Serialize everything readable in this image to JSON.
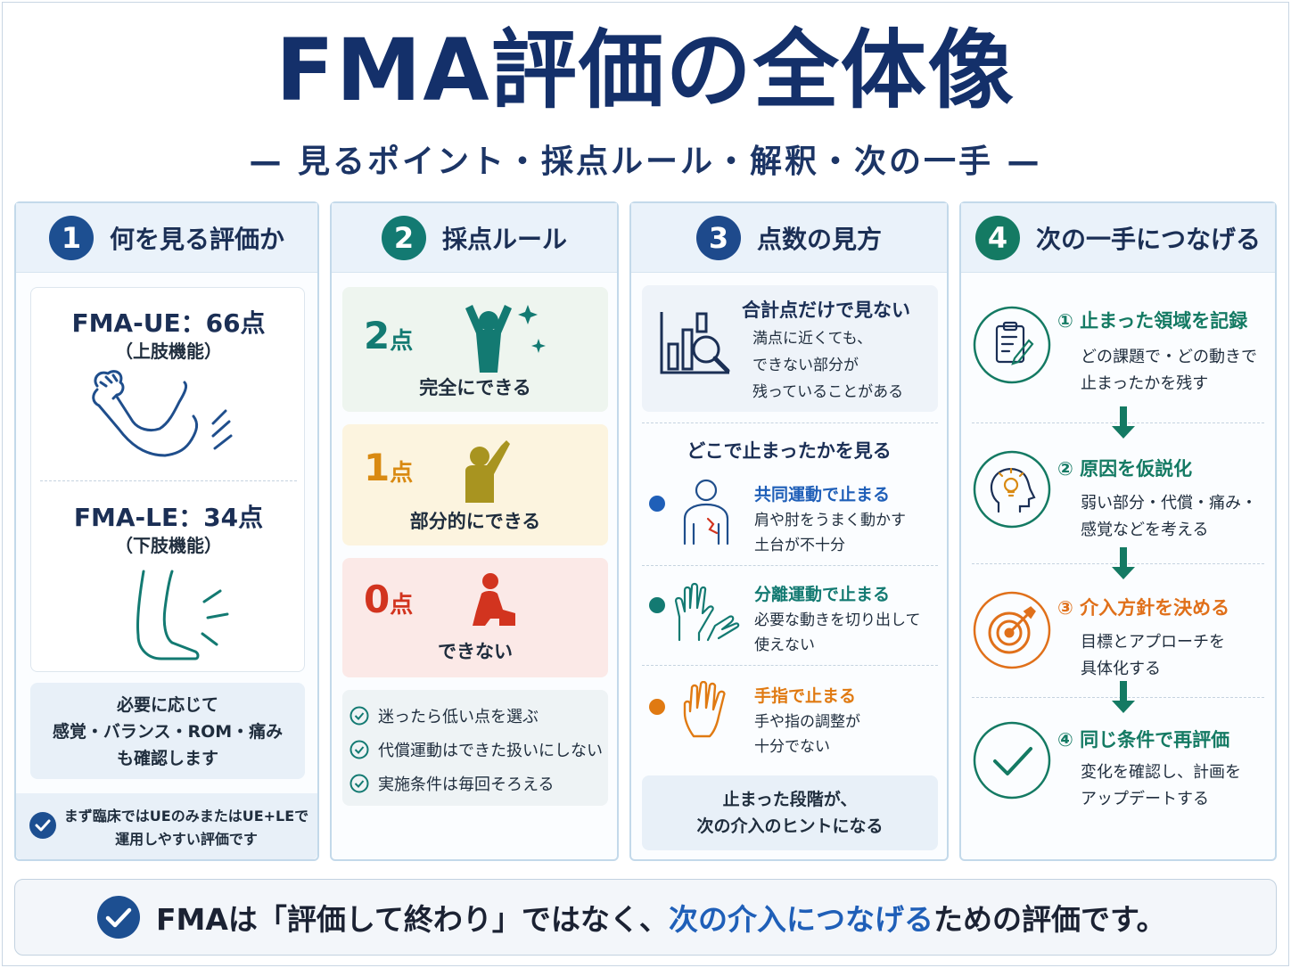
{
  "title": "FMA評価の全体像",
  "subtitle": "— 見るポイント・採点ルール・解釈・次の一手 —",
  "col1": {
    "num": "1",
    "heading": "何を見る評価か",
    "ue_title": "FMA-UE：66点",
    "ue_sub": "（上肢機能）",
    "le_title": "FMA-LE：34点",
    "le_sub": "（下肢機能）",
    "note_lines": [
      "必要に応じて",
      "感覚・バランス・ROM・痛み",
      "も確認します"
    ],
    "foot_lines": [
      "まず臨床ではUEのみまたはUE+LEで",
      "運用しやすい評価です"
    ]
  },
  "col2": {
    "num": "2",
    "heading": "採点ルール",
    "score2": {
      "num": "2",
      "unit": "点",
      "label": "完全にできる",
      "color": "#137a72",
      "bg": "#eef5ef"
    },
    "score1": {
      "num": "1",
      "unit": "点",
      "label": "部分的にできる",
      "color": "#d98a12",
      "bg": "#fcf4df"
    },
    "score0": {
      "num": "0",
      "unit": "点",
      "label": "できない",
      "color": "#d2341f",
      "bg": "#fbe9e7"
    },
    "rules": [
      "迷ったら低い点を選ぶ",
      "代償運動はできた扱いにしない",
      "実施条件は毎回そろえる"
    ]
  },
  "col3": {
    "num": "3",
    "heading": "点数の見方",
    "total_title": "合計点だけで見ない",
    "total_lines": [
      "満点に近くても、",
      "できない部分が",
      "残っていることがある"
    ],
    "where_title": "どこで止まったかを見る",
    "items": [
      {
        "title": "共同運動で止まる",
        "lines": [
          "肩や肘をうまく動かす",
          "土台が不十分"
        ],
        "color": "#1f5fb8"
      },
      {
        "title": "分離運動で止まる",
        "lines": [
          "必要な動きを切り出して",
          "使えない"
        ],
        "color": "#137a72"
      },
      {
        "title": "手指で止まる",
        "lines": [
          "手や指の調整が",
          "十分でない"
        ],
        "color": "#e07a12"
      }
    ],
    "foot_lines": [
      "止まった段階が、",
      "次の介入のヒントになる"
    ]
  },
  "col4": {
    "num": "4",
    "heading": "次の一手につなげる",
    "steps": [
      {
        "title": "① 止まった領域を記録",
        "lines": [
          "どの課題で・どの動きで",
          "止まったかを残す"
        ],
        "color": "#147a63"
      },
      {
        "title": "② 原因を仮説化",
        "lines": [
          "弱い部分・代償・痛み・",
          "感覚などを考える"
        ],
        "color": "#147a63"
      },
      {
        "title": "③ 介入方針を決める",
        "lines": [
          "目標とアプローチを",
          "具体化する"
        ],
        "color": "#e0701a"
      },
      {
        "title": "④ 同じ条件で再評価",
        "lines": [
          "変化を確認し、計画を",
          "アップデートする"
        ],
        "color": "#147a63"
      }
    ]
  },
  "footer": {
    "part1": "FMAは「評価して終わり」ではなく、",
    "highlight": "次の介入につなげる",
    "part2": "ための評価です。"
  },
  "icons": [
    "arm-icon",
    "leg-icon",
    "person-cheer-icon",
    "person-reach-icon",
    "person-sit-icon",
    "check-circle-icon",
    "chart-magnifier-icon",
    "person-shoulder-icon",
    "hands-icon",
    "hand-icon",
    "clipboard-icon",
    "head-bulb-icon",
    "target-icon",
    "down-arrow-icon"
  ]
}
